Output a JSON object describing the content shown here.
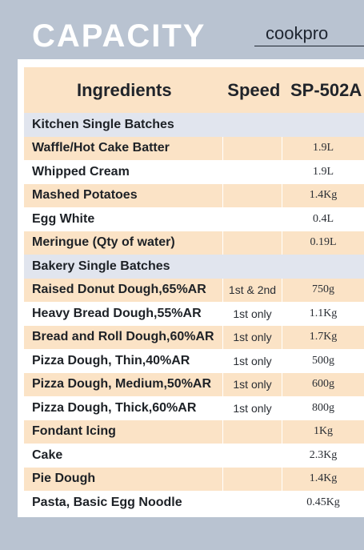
{
  "header": {
    "title": "CAPACITY",
    "brand": "cookpro"
  },
  "table": {
    "columns": [
      "Ingredients",
      "Speed",
      "SP-502A"
    ],
    "rows": [
      {
        "type": "section",
        "ingredient": "Kitchen Single Batches",
        "speed": "",
        "capacity": ""
      },
      {
        "type": "peach",
        "ingredient": "Waffle/Hot Cake Batter",
        "speed": "",
        "capacity": "1.9L"
      },
      {
        "type": "white",
        "ingredient": "Whipped Cream",
        "speed": "",
        "capacity": "1.9L"
      },
      {
        "type": "peach",
        "ingredient": "Mashed Potatoes",
        "speed": "",
        "capacity": "1.4Kg"
      },
      {
        "type": "white",
        "ingredient": "Egg White",
        "speed": "",
        "capacity": "0.4L"
      },
      {
        "type": "peach",
        "ingredient": "Meringue (Qty of water)",
        "speed": "",
        "capacity": "0.19L"
      },
      {
        "type": "section",
        "ingredient": "Bakery Single Batches",
        "speed": "",
        "capacity": ""
      },
      {
        "type": "peach",
        "ingredient": "Raised Donut Dough,65%AR",
        "speed": "1st & 2nd",
        "capacity": "750g"
      },
      {
        "type": "white",
        "ingredient": "Heavy Bread Dough,55%AR",
        "speed": "1st only",
        "capacity": "1.1Kg"
      },
      {
        "type": "peach",
        "ingredient": "Bread and Roll Dough,60%AR",
        "speed": "1st only",
        "capacity": "1.7Kg"
      },
      {
        "type": "white",
        "ingredient": "Pizza Dough, Thin,40%AR",
        "speed": "1st only",
        "capacity": "500g"
      },
      {
        "type": "peach",
        "ingredient": "Pizza Dough, Medium,50%AR",
        "speed": "1st only",
        "capacity": "600g"
      },
      {
        "type": "white",
        "ingredient": "Pizza Dough, Thick,60%AR",
        "speed": "1st only",
        "capacity": "800g"
      },
      {
        "type": "peach",
        "ingredient": "Fondant Icing",
        "speed": "",
        "capacity": "1Kg"
      },
      {
        "type": "white",
        "ingredient": "Cake",
        "speed": "",
        "capacity": "2.3Kg"
      },
      {
        "type": "peach",
        "ingredient": "Pie Dough",
        "speed": "",
        "capacity": "1.4Kg"
      },
      {
        "type": "white",
        "ingredient": "Pasta, Basic Egg Noodle",
        "speed": "",
        "capacity": "0.45Kg"
      }
    ]
  },
  "colors": {
    "background": "#b9c3d1",
    "row_peach": "#fbe3c6",
    "row_section": "#e1e5ee",
    "title": "#ffffff"
  }
}
